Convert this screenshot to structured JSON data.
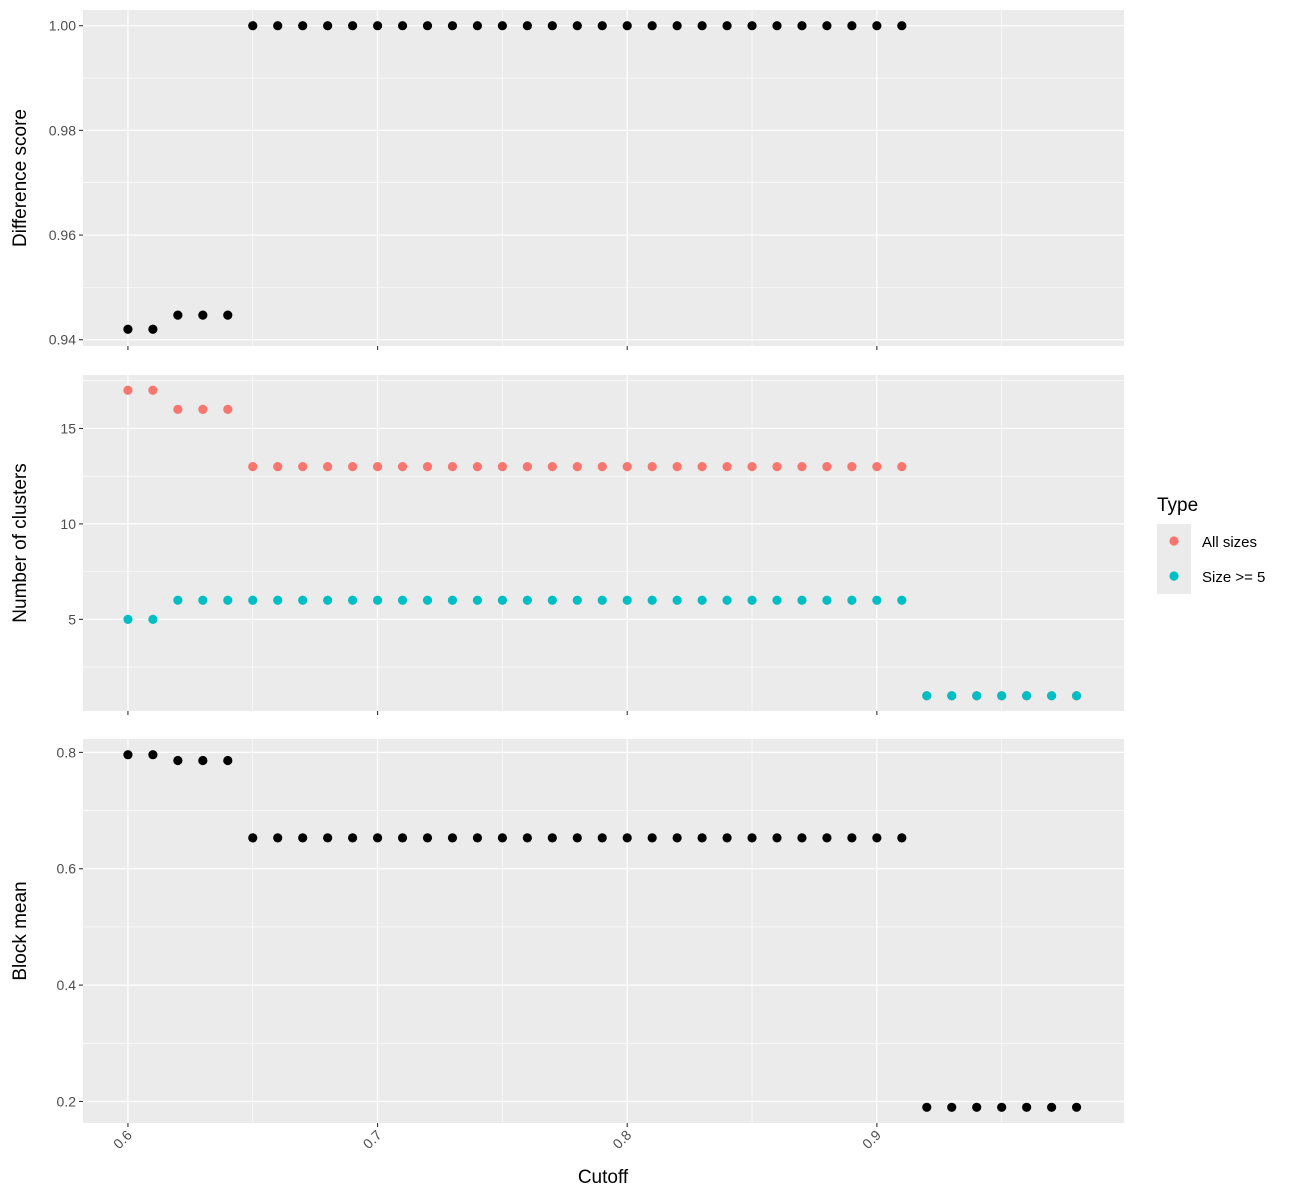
{
  "chart_data": {
    "type": "scatter",
    "xlabel": "Cutoff",
    "x_ticks": [
      "0.6",
      "0.7",
      "0.8",
      "0.9"
    ],
    "x_tick_values": [
      0.6,
      0.7,
      0.8,
      0.9
    ],
    "xlim": [
      0.582,
      0.999
    ],
    "grid": true,
    "legend": {
      "title": "Type",
      "placement": "right",
      "entries": [
        {
          "label": "All sizes",
          "color": "#F8766D"
        },
        {
          "label": "Size >= 5",
          "color": "#00BFC4"
        }
      ]
    },
    "panels": [
      {
        "ylabel": "Difference score",
        "ylim": [
          0.9388,
          1.003
        ],
        "y_ticks": [
          "0.94",
          "0.96",
          "0.98",
          "1.00"
        ],
        "y_tick_values": [
          0.94,
          0.96,
          0.98,
          1.0
        ],
        "series": [
          {
            "color": "#000000",
            "x": [
              0.6,
              0.61,
              0.62,
              0.63,
              0.64,
              0.65,
              0.66,
              0.67,
              0.68,
              0.69,
              0.7,
              0.71,
              0.72,
              0.73,
              0.74,
              0.75,
              0.76,
              0.77,
              0.78,
              0.79,
              0.8,
              0.81,
              0.82,
              0.83,
              0.84,
              0.85,
              0.86,
              0.87,
              0.88,
              0.89,
              0.9,
              0.91
            ],
            "y": [
              0.942,
              0.942,
              0.9447,
              0.9447,
              0.9447,
              1.0,
              1.0,
              1.0,
              1.0,
              1.0,
              1.0,
              1.0,
              1.0,
              1.0,
              1.0,
              1.0,
              1.0,
              1.0,
              1.0,
              1.0,
              1.0,
              1.0,
              1.0,
              1.0,
              1.0,
              1.0,
              1.0,
              1.0,
              1.0,
              1.0,
              1.0,
              1.0
            ]
          }
        ]
      },
      {
        "ylabel": "Number of clusters",
        "ylim": [
          0.2,
          17.8
        ],
        "y_ticks": [
          "5",
          "10",
          "15"
        ],
        "y_tick_values": [
          5,
          10,
          15
        ],
        "series": [
          {
            "name": "All sizes",
            "color": "#F8766D",
            "x": [
              0.6,
              0.61,
              0.62,
              0.63,
              0.64,
              0.65,
              0.66,
              0.67,
              0.68,
              0.69,
              0.7,
              0.71,
              0.72,
              0.73,
              0.74,
              0.75,
              0.76,
              0.77,
              0.78,
              0.79,
              0.8,
              0.81,
              0.82,
              0.83,
              0.84,
              0.85,
              0.86,
              0.87,
              0.88,
              0.89,
              0.9,
              0.91,
              0.92,
              0.93,
              0.94,
              0.95,
              0.96,
              0.97,
              0.98
            ],
            "y": [
              17,
              17,
              16,
              16,
              16,
              13,
              13,
              13,
              13,
              13,
              13,
              13,
              13,
              13,
              13,
              13,
              13,
              13,
              13,
              13,
              13,
              13,
              13,
              13,
              13,
              13,
              13,
              13,
              13,
              13,
              13,
              13,
              1,
              1,
              1,
              1,
              1,
              1,
              1
            ]
          },
          {
            "name": "Size >= 5",
            "color": "#00BFC4",
            "x": [
              0.6,
              0.61,
              0.62,
              0.63,
              0.64,
              0.65,
              0.66,
              0.67,
              0.68,
              0.69,
              0.7,
              0.71,
              0.72,
              0.73,
              0.74,
              0.75,
              0.76,
              0.77,
              0.78,
              0.79,
              0.8,
              0.81,
              0.82,
              0.83,
              0.84,
              0.85,
              0.86,
              0.87,
              0.88,
              0.89,
              0.9,
              0.91,
              0.92,
              0.93,
              0.94,
              0.95,
              0.96,
              0.97,
              0.98
            ],
            "y": [
              5,
              5,
              6,
              6,
              6,
              6,
              6,
              6,
              6,
              6,
              6,
              6,
              6,
              6,
              6,
              6,
              6,
              6,
              6,
              6,
              6,
              6,
              6,
              6,
              6,
              6,
              6,
              6,
              6,
              6,
              6,
              6,
              1,
              1,
              1,
              1,
              1,
              1,
              1
            ]
          }
        ]
      },
      {
        "ylabel": "Block mean",
        "ylim": [
          0.163,
          0.823
        ],
        "y_ticks": [
          "0.2",
          "0.4",
          "0.6",
          "0.8"
        ],
        "y_tick_values": [
          0.2,
          0.4,
          0.6,
          0.8
        ],
        "series": [
          {
            "color": "#000000",
            "x": [
              0.6,
              0.61,
              0.62,
              0.63,
              0.64,
              0.65,
              0.66,
              0.67,
              0.68,
              0.69,
              0.7,
              0.71,
              0.72,
              0.73,
              0.74,
              0.75,
              0.76,
              0.77,
              0.78,
              0.79,
              0.8,
              0.81,
              0.82,
              0.83,
              0.84,
              0.85,
              0.86,
              0.87,
              0.88,
              0.89,
              0.9,
              0.91,
              0.92,
              0.93,
              0.94,
              0.95,
              0.96,
              0.97,
              0.98
            ],
            "y": [
              0.796,
              0.796,
              0.786,
              0.786,
              0.786,
              0.653,
              0.653,
              0.653,
              0.653,
              0.653,
              0.653,
              0.653,
              0.653,
              0.653,
              0.653,
              0.653,
              0.653,
              0.653,
              0.653,
              0.653,
              0.653,
              0.653,
              0.653,
              0.653,
              0.653,
              0.653,
              0.653,
              0.653,
              0.653,
              0.653,
              0.653,
              0.653,
              0.19,
              0.19,
              0.19,
              0.19,
              0.19,
              0.19,
              0.19
            ]
          }
        ]
      }
    ]
  }
}
